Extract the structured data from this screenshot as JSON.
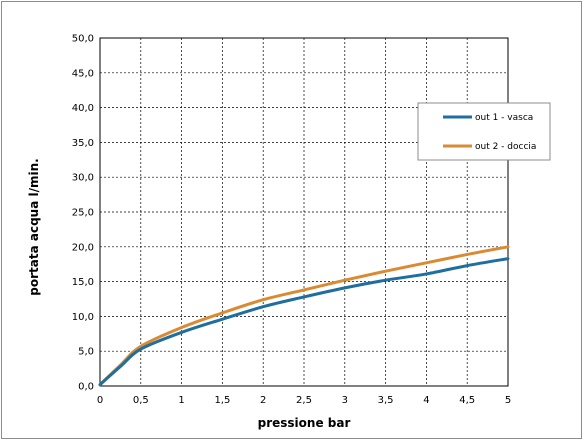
{
  "chart_data": {
    "type": "line",
    "xlabel": "pressione bar",
    "ylabel": "portata acqua  l/min.",
    "xlim": [
      0,
      5
    ],
    "ylim": [
      0,
      50
    ],
    "x_ticks": [
      "0",
      "0,5",
      "1",
      "1,5",
      "2",
      "2,5",
      "3",
      "3,5",
      "4",
      "4,5",
      "5"
    ],
    "y_ticks": [
      "0,0",
      "5,0",
      "10,0",
      "15,0",
      "20,0",
      "25,0",
      "30,0",
      "35,0",
      "40,0",
      "45,0",
      "50,0"
    ],
    "grid": true,
    "legend_position": "top-right",
    "series": [
      {
        "name": "out 1 - vasca",
        "color": "#1f6ea0",
        "x": [
          0,
          0.25,
          0.5,
          1.0,
          1.5,
          2.0,
          2.5,
          3.0,
          3.5,
          4.0,
          4.5,
          5.0
        ],
        "y": [
          0.2,
          2.8,
          5.3,
          7.7,
          9.6,
          11.4,
          12.8,
          14.1,
          15.2,
          16.1,
          17.3,
          18.3
        ]
      },
      {
        "name": "out 2 - doccia",
        "color": "#d98a33",
        "x": [
          0,
          0.25,
          0.5,
          1.0,
          1.5,
          2.0,
          2.5,
          3.0,
          3.5,
          4.0,
          4.5,
          5.0
        ],
        "y": [
          0.2,
          3.0,
          5.7,
          8.4,
          10.5,
          12.4,
          13.8,
          15.2,
          16.5,
          17.7,
          18.9,
          20.0
        ]
      }
    ]
  }
}
